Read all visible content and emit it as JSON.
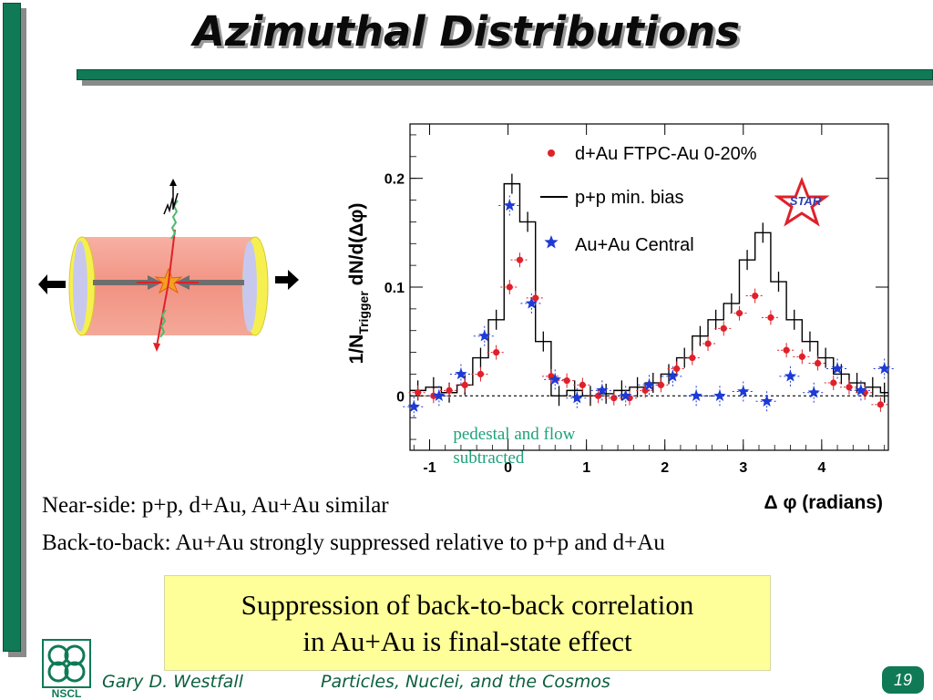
{
  "slide": {
    "title": "Azimuthal Distributions",
    "text_lines": [
      "Near-side: p+p, d+Au, Au+Au similar",
      "Back-to-back: Au+Au strongly suppressed relative to p+p and d+Au"
    ],
    "conclusion_lines": [
      "Suppression of back-to-back correlation",
      "in Au+Au is final-state effect"
    ],
    "footer": {
      "author": "Gary D. Westfall",
      "course": "Particles, Nuclei, and the Cosmos",
      "page_number": "19",
      "logo_text": "NSCL"
    },
    "colors": {
      "accent": "#0f7a55",
      "conclusion_bg": "#ffff99",
      "footer_text": "#0b5f3f"
    }
  },
  "detector_icon": {
    "icon": "collision-detector-icon",
    "colors": {
      "cylinder": "#f39a8a",
      "end_caps": "#f5f050",
      "tracks": "#e0202a",
      "jets": "#4fb870"
    }
  },
  "chart_data": {
    "type": "scatter",
    "xlabel": "Δ φ (radians)",
    "ylabel": "1/N",
    "ylabel_sub": "Trigger",
    "ylabel_rest": " dN/d(Δφ)",
    "xlim": [
      -1.25,
      4.85
    ],
    "ylim": [
      -0.05,
      0.25
    ],
    "x_ticks": [
      -1,
      0,
      1,
      2,
      3,
      4
    ],
    "x_tick_labels": [
      "-1",
      "0",
      "1",
      "2",
      "3",
      "4"
    ],
    "y_ticks": [
      0,
      0.1,
      0.2
    ],
    "y_tick_labels": [
      "0",
      "0.1",
      "0.2"
    ],
    "reference_line_y": 0,
    "annotation": {
      "lines": [
        "pedestal and flow",
        "subtracted"
      ],
      "color": "#1fa27a"
    },
    "logo": {
      "text": "STAR",
      "star_color": "#e0202a",
      "text_color": "#2a3fb0"
    },
    "series": [
      {
        "name": "d+Au FTPC-Au 0-20%",
        "marker": "circle",
        "color": "#e0202a",
        "x": [
          -1.15,
          -0.95,
          -0.75,
          -0.55,
          -0.35,
          -0.15,
          0.02,
          0.15,
          0.35,
          0.55,
          0.75,
          0.95,
          1.15,
          1.35,
          1.55,
          1.75,
          1.95,
          2.15,
          2.35,
          2.55,
          2.75,
          2.95,
          3.15,
          3.35,
          3.55,
          3.75,
          3.95,
          4.15,
          4.35,
          4.55,
          4.75
        ],
        "y": [
          0.003,
          0.0,
          0.005,
          0.01,
          0.02,
          0.04,
          0.1,
          0.125,
          0.09,
          0.018,
          0.014,
          0.01,
          0.0,
          -0.002,
          -0.002,
          0.005,
          0.01,
          0.025,
          0.035,
          0.048,
          0.062,
          0.076,
          0.092,
          0.072,
          0.042,
          0.036,
          0.03,
          0.012,
          0.008,
          0.003,
          -0.008
        ]
      },
      {
        "name": "p+p min. bias",
        "marker": "step-line",
        "color": "#000000",
        "x": [
          -1.25,
          -1.05,
          -0.85,
          -0.65,
          -0.45,
          -0.25,
          -0.05,
          0.15,
          0.35,
          0.55,
          0.75,
          0.95,
          1.15,
          1.35,
          1.55,
          1.75,
          1.95,
          2.15,
          2.35,
          2.55,
          2.75,
          2.95,
          3.15,
          3.35,
          3.55,
          3.75,
          3.95,
          4.15,
          4.35,
          4.55,
          4.75
        ],
        "y": [
          0.005,
          0.008,
          0.003,
          0.01,
          0.035,
          0.07,
          0.195,
          0.16,
          0.05,
          0.0,
          0.005,
          0.0,
          0.002,
          0.005,
          0.008,
          0.012,
          0.02,
          0.035,
          0.055,
          0.07,
          0.085,
          0.125,
          0.15,
          0.105,
          0.07,
          0.05,
          0.035,
          0.02,
          0.012,
          0.008,
          0.003
        ]
      },
      {
        "name": "Au+Au Central",
        "marker": "star",
        "color": "#1e3ad6",
        "x": [
          -1.2,
          -0.88,
          -0.6,
          -0.3,
          0.02,
          0.3,
          0.6,
          0.88,
          1.2,
          1.5,
          1.8,
          2.1,
          2.4,
          2.7,
          3.0,
          3.3,
          3.6,
          3.9,
          4.2,
          4.5,
          4.8
        ],
        "y": [
          -0.01,
          0.0,
          0.02,
          0.055,
          0.175,
          0.085,
          0.015,
          -0.002,
          0.005,
          0.0,
          0.01,
          0.018,
          0.0,
          0.0,
          0.004,
          -0.005,
          0.018,
          0.003,
          0.025,
          0.005,
          0.025
        ]
      }
    ]
  }
}
